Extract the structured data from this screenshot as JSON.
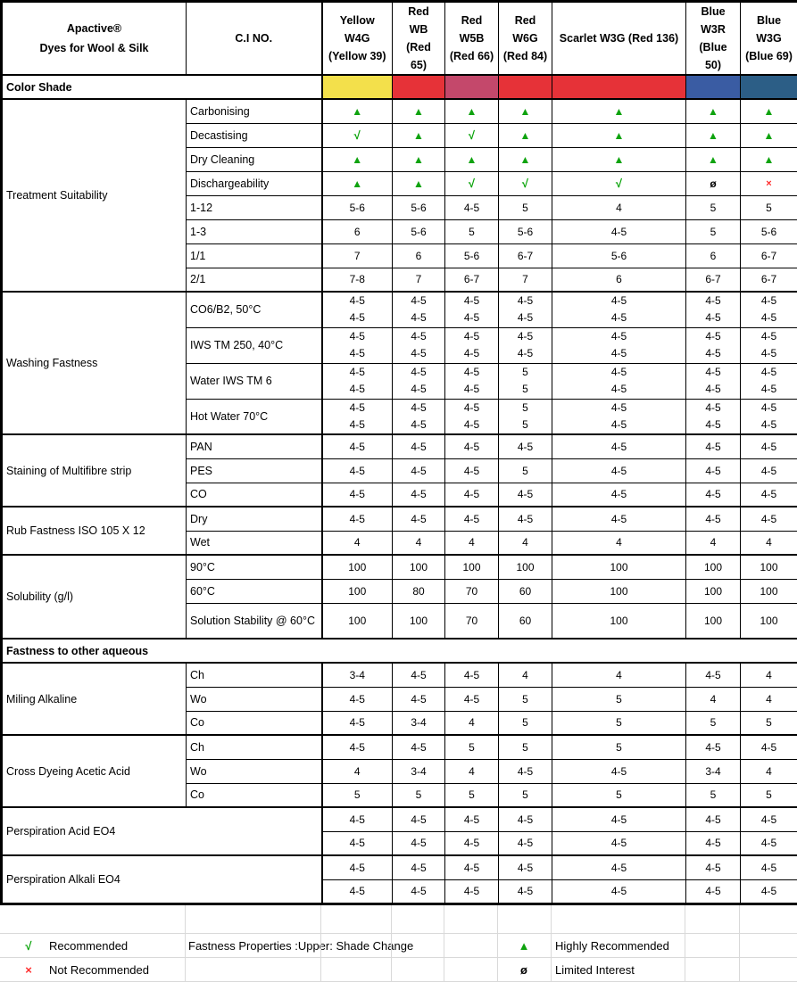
{
  "table": {
    "corner_lines": [
      "Apactive®",
      "Dyes for Wool & Silk"
    ],
    "ci_header": "C.I NO.",
    "color_shade_label": "Color Shade",
    "dyes": [
      {
        "name": "Yellow W4G (Yellow 39)",
        "lines": [
          "Yellow",
          "W4G",
          "(Yellow 39)"
        ],
        "swatch": "#F3E04B"
      },
      {
        "name": "Red WB (Red 65)",
        "lines": [
          "Red",
          "WB (Red",
          "65)"
        ],
        "swatch": "#E63238"
      },
      {
        "name": "Red W5B (Red 66)",
        "lines": [
          "Red",
          "W5B",
          "(Red 66)"
        ],
        "swatch": "#C4486B"
      },
      {
        "name": "Red W6G (Red 84)",
        "lines": [
          "Red",
          "W6G",
          "(Red 84)"
        ],
        "swatch": "#E63238"
      },
      {
        "name": "Scarlet W3G (Red 136)",
        "lines": [
          "Scarlet W3G (Red 136)"
        ],
        "swatch": "#E63238"
      },
      {
        "name": "Blue W3R (Blue 50)",
        "lines": [
          "Blue",
          "W3R",
          "(Blue 50)"
        ],
        "swatch": "#3A5CA3"
      },
      {
        "name": "Blue W3G (Blue 69)",
        "lines": [
          "Blue",
          "W3G",
          "(Blue 69)"
        ],
        "swatch": "#2C5E86"
      }
    ],
    "sections": [
      {
        "label": "Treatment Suitability",
        "type": "normal",
        "rows": [
          {
            "sub": "Carbonising",
            "values": [
              "▲",
              "▲",
              "▲",
              "▲",
              "▲",
              "▲",
              "▲"
            ]
          },
          {
            "sub": "Decastising",
            "values": [
              "√",
              "▲",
              "√",
              "▲",
              "▲",
              "▲",
              "▲"
            ]
          },
          {
            "sub": "Dry Cleaning",
            "values": [
              "▲",
              "▲",
              "▲",
              "▲",
              "▲",
              "▲",
              "▲"
            ]
          },
          {
            "sub": "Dischargeability",
            "values": [
              "▲",
              "▲",
              "√",
              "√",
              "√",
              "ø",
              "×"
            ]
          },
          {
            "sub": "1-12",
            "values": [
              "5-6",
              "5-6",
              "4-5",
              "5",
              "4",
              "5",
              "5"
            ]
          },
          {
            "sub": "1-3",
            "values": [
              "6",
              "5-6",
              "5",
              "5-6",
              "4-5",
              "5",
              "5-6"
            ]
          },
          {
            "sub": "1/1",
            "values": [
              "7",
              "6",
              "5-6",
              "6-7",
              "5-6",
              "6",
              "6-7"
            ]
          },
          {
            "sub": "2/1",
            "values": [
              "7-8",
              "7",
              "6-7",
              "7",
              "6",
              "6-7",
              "6-7"
            ]
          }
        ]
      },
      {
        "label": "Washing Fastness",
        "type": "normal",
        "rows": [
          {
            "sub": "CO6/B2, 50°C",
            "values": [
              [
                "4-5",
                "4-5"
              ],
              [
                "4-5",
                "4-5"
              ],
              [
                "4-5",
                "4-5"
              ],
              [
                "4-5",
                "4-5"
              ],
              [
                "4-5",
                "4-5"
              ],
              [
                "4-5",
                "4-5"
              ],
              [
                "4-5",
                "4-5"
              ]
            ]
          },
          {
            "sub": "IWS TM 250, 40°C",
            "values": [
              [
                "4-5",
                "4-5"
              ],
              [
                "4-5",
                "4-5"
              ],
              [
                "4-5",
                "4-5"
              ],
              [
                "4-5",
                "4-5"
              ],
              [
                "4-5",
                "4-5"
              ],
              [
                "4-5",
                "4-5"
              ],
              [
                "4-5",
                "4-5"
              ]
            ]
          },
          {
            "sub": "Water IWS TM 6",
            "values": [
              [
                "4-5",
                "4-5"
              ],
              [
                "4-5",
                "4-5"
              ],
              [
                "4-5",
                "4-5"
              ],
              [
                "5",
                "5"
              ],
              [
                "4-5",
                "4-5"
              ],
              [
                "4-5",
                "4-5"
              ],
              [
                "4-5",
                "4-5"
              ]
            ]
          },
          {
            "sub": "Hot Water 70°C",
            "values": [
              [
                "4-5",
                "4-5"
              ],
              [
                "4-5",
                "4-5"
              ],
              [
                "4-5",
                "4-5"
              ],
              [
                "5",
                "5"
              ],
              [
                "4-5",
                "4-5"
              ],
              [
                "4-5",
                "4-5"
              ],
              [
                "4-5",
                "4-5"
              ]
            ]
          }
        ]
      },
      {
        "label": "Staining of Multifibre strip",
        "type": "normal",
        "rows": [
          {
            "sub": "PAN",
            "values": [
              "4-5",
              "4-5",
              "4-5",
              "4-5",
              "4-5",
              "4-5",
              "4-5"
            ]
          },
          {
            "sub": "PES",
            "values": [
              "4-5",
              "4-5",
              "4-5",
              "5",
              "4-5",
              "4-5",
              "4-5"
            ]
          },
          {
            "sub": "CO",
            "values": [
              "4-5",
              "4-5",
              "4-5",
              "4-5",
              "4-5",
              "4-5",
              "4-5"
            ]
          }
        ]
      },
      {
        "label": "Rub Fastness ISO 105 X 12",
        "type": "normal",
        "rows": [
          {
            "sub": "Dry",
            "values": [
              "4-5",
              "4-5",
              "4-5",
              "4-5",
              "4-5",
              "4-5",
              "4-5"
            ]
          },
          {
            "sub": "Wet",
            "values": [
              "4",
              "4",
              "4",
              "4",
              "4",
              "4",
              "4"
            ]
          }
        ]
      },
      {
        "label": "Solubility (g/l)",
        "type": "normal",
        "rows": [
          {
            "sub": "90°C",
            "values": [
              "100",
              "100",
              "100",
              "100",
              "100",
              "100",
              "100"
            ]
          },
          {
            "sub": "60°C",
            "values": [
              "100",
              "80",
              "70",
              "60",
              "100",
              "100",
              "100"
            ]
          },
          {
            "sub": "Solution Stability @ 60°C",
            "values": [
              "100",
              "100",
              "70",
              "60",
              "100",
              "100",
              "100"
            ]
          }
        ]
      },
      {
        "label": "Fastness to other aqueous",
        "type": "banner"
      },
      {
        "label": "Miling Alkaline",
        "type": "normal",
        "rows": [
          {
            "sub": "Ch",
            "values": [
              "3-4",
              "4-5",
              "4-5",
              "4",
              "4",
              "4-5",
              "4"
            ]
          },
          {
            "sub": "Wo",
            "values": [
              "4-5",
              "4-5",
              "4-5",
              "5",
              "5",
              "4",
              "4"
            ]
          },
          {
            "sub": "Co",
            "values": [
              "4-5",
              "3-4",
              "4",
              "5",
              "5",
              "5",
              "5"
            ]
          }
        ]
      },
      {
        "label": "Cross Dyeing Acetic Acid",
        "type": "normal",
        "rows": [
          {
            "sub": "Ch",
            "values": [
              "4-5",
              "4-5",
              "5",
              "5",
              "5",
              "4-5",
              "4-5"
            ]
          },
          {
            "sub": "Wo",
            "values": [
              "4",
              "3-4",
              "4",
              "4-5",
              "4-5",
              "3-4",
              "4"
            ]
          },
          {
            "sub": "Co",
            "values": [
              "5",
              "5",
              "5",
              "5",
              "5",
              "5",
              "5"
            ]
          }
        ]
      },
      {
        "label": "Perspiration Acid EO4",
        "type": "wide",
        "rows": [
          {
            "values": [
              "4-5",
              "4-5",
              "4-5",
              "4-5",
              "4-5",
              "4-5",
              "4-5"
            ]
          },
          {
            "values": [
              "4-5",
              "4-5",
              "4-5",
              "4-5",
              "4-5",
              "4-5",
              "4-5"
            ]
          }
        ]
      },
      {
        "label": "Perspiration Alkali EO4",
        "type": "wide",
        "rows": [
          {
            "values": [
              "4-5",
              "4-5",
              "4-5",
              "4-5",
              "4-5",
              "4-5",
              "4-5"
            ]
          },
          {
            "values": [
              "4-5",
              "4-5",
              "4-5",
              "4-5",
              "4-5",
              "4-5",
              "4-5"
            ]
          }
        ]
      }
    ]
  },
  "legend": {
    "recommended": {
      "symbol": "√",
      "label": "Recommended"
    },
    "not_recommended": {
      "symbol": "×",
      "label": "Not Recommended"
    },
    "highly_recommended": {
      "symbol": "▲",
      "label": "Highly Recommended"
    },
    "limited_interest": {
      "symbol": "ø",
      "label": "Limited Interest"
    },
    "note": "Fastness Properties :Upper: Shade Change"
  },
  "colors": {
    "symbol_green": "#0FA30F",
    "symbol_red": "#FF2B2B",
    "legend_grid": "#d9d9d9"
  }
}
